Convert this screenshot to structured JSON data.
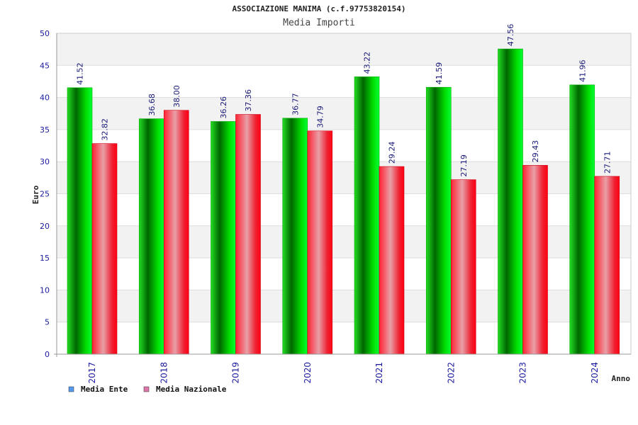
{
  "chart_data": {
    "type": "bar",
    "title": "ASSOCIAZIONE MANIMA (c.f.97753820154)",
    "subtitle": "Media Importi",
    "xlabel": "Anno",
    "ylabel": "Euro",
    "categories": [
      "2017",
      "2018",
      "2019",
      "2020",
      "2021",
      "2022",
      "2023",
      "2024"
    ],
    "ylim": [
      0,
      50
    ],
    "yticks": [
      0,
      5,
      10,
      15,
      20,
      25,
      30,
      35,
      40,
      45,
      50
    ],
    "grid": true,
    "legend_position": "bottom-left",
    "series": [
      {
        "name": "Media Ente",
        "color": "#00cc00",
        "legend_color": "#5599ee",
        "values": [
          41.52,
          36.68,
          36.26,
          36.77,
          43.22,
          41.59,
          47.56,
          41.96
        ],
        "labels": [
          "41.52",
          "36.68",
          "36.26",
          "36.77",
          "43.22",
          "41.59",
          "47.56",
          "41.96"
        ]
      },
      {
        "name": "Media Nazionale",
        "color": "#ee1122",
        "legend_color": "#dd77aa",
        "values": [
          32.82,
          38.0,
          37.36,
          34.79,
          29.24,
          27.19,
          29.43,
          27.71
        ],
        "labels": [
          "32.82",
          "38.00",
          "37.36",
          "34.79",
          "29.24",
          "27.19",
          "29.43",
          "27.71"
        ]
      }
    ]
  }
}
